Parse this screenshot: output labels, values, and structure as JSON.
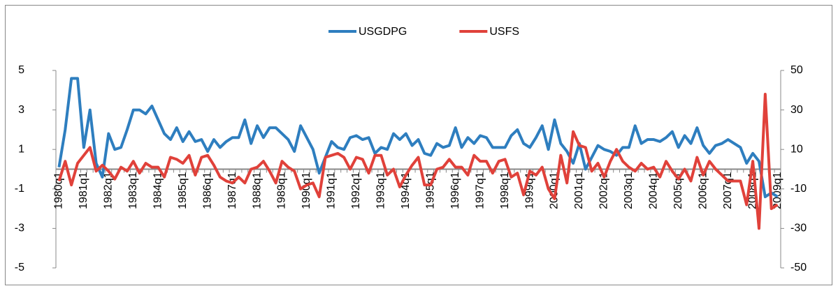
{
  "chart_data": {
    "type": "line",
    "categories": [
      "1980q1",
      null,
      null,
      null,
      "1981q1",
      null,
      null,
      null,
      "1982q1",
      null,
      null,
      null,
      "1983q1",
      null,
      null,
      null,
      "1984q1",
      null,
      null,
      null,
      "1985q1",
      null,
      null,
      null,
      "1986q1",
      null,
      null,
      null,
      "1987q1",
      null,
      null,
      null,
      "1988q1",
      null,
      null,
      null,
      "1989q1",
      null,
      null,
      null,
      "1990q1",
      null,
      null,
      null,
      "1991q1",
      null,
      null,
      null,
      "1992q1",
      null,
      null,
      null,
      "1993q1",
      null,
      null,
      null,
      "1994q1",
      null,
      null,
      null,
      "1995q1",
      null,
      null,
      null,
      "1996q1",
      null,
      null,
      null,
      "1997q1",
      null,
      null,
      null,
      "1998q1",
      null,
      null,
      null,
      "1999q1",
      null,
      null,
      null,
      "2000q1",
      null,
      null,
      null,
      "2001q1",
      null,
      null,
      null,
      "2002q1",
      null,
      null,
      null,
      "2003q1",
      null,
      null,
      null,
      "2004q1",
      null,
      null,
      null,
      "2005q1",
      null,
      null,
      null,
      "2006q1",
      null,
      null,
      null,
      "2007q1",
      null,
      null,
      null,
      "2008q1",
      null,
      null,
      null,
      "2009q1"
    ],
    "series": [
      {
        "name": "USGDPG",
        "color": "#2e7ebf",
        "values": [
          0.1,
          2.0,
          4.6,
          4.6,
          1.1,
          3.0,
          0.3,
          -0.4,
          1.8,
          1.0,
          1.1,
          2.0,
          3.0,
          3.0,
          2.8,
          3.2,
          2.5,
          1.8,
          1.5,
          2.1,
          1.4,
          1.9,
          1.4,
          1.5,
          0.9,
          1.5,
          1.1,
          1.4,
          1.6,
          1.6,
          2.5,
          1.3,
          2.2,
          1.6,
          2.1,
          2.1,
          1.8,
          1.5,
          0.9,
          2.2,
          1.6,
          1.0,
          -0.2,
          0.6,
          1.4,
          1.1,
          1.0,
          1.6,
          1.7,
          1.5,
          1.6,
          0.8,
          1.1,
          1.0,
          1.8,
          1.5,
          1.8,
          1.2,
          1.5,
          0.8,
          0.7,
          1.3,
          1.1,
          1.2,
          2.1,
          1.1,
          1.6,
          1.3,
          1.7,
          1.6,
          1.1,
          1.1,
          1.1,
          1.7,
          2.0,
          1.3,
          1.1,
          1.6,
          2.2,
          1.0,
          2.5,
          1.3,
          0.9,
          0.3,
          1.3,
          0.0,
          0.6,
          1.2,
          1.0,
          0.9,
          0.7,
          1.1,
          1.1,
          2.2,
          1.3,
          1.5,
          1.5,
          1.4,
          1.6,
          1.9,
          1.1,
          1.7,
          1.3,
          2.1,
          1.2,
          0.8,
          1.2,
          1.3,
          1.5,
          1.3,
          1.1,
          0.3,
          0.8,
          0.4,
          -1.4,
          -1.2,
          -1.4
        ]
      },
      {
        "name": "USFS",
        "color": "#e0413a",
        "axis": "y2",
        "values": [
          -6,
          4,
          -8,
          3,
          7,
          11,
          -1,
          2,
          -1,
          -5,
          1,
          -1,
          4,
          -2,
          3,
          1,
          1,
          -4,
          6,
          5,
          3,
          7,
          -3,
          6,
          7,
          2,
          -4,
          -6,
          -7,
          -4,
          -7,
          0,
          1,
          4,
          -1,
          -7,
          4,
          1,
          -1,
          -10,
          -8,
          -7,
          -14,
          6,
          7,
          8,
          6,
          0,
          6,
          5,
          -2,
          7,
          7,
          -3,
          0,
          -9,
          -3,
          2,
          6,
          -8,
          -8,
          0,
          1,
          5,
          1,
          1,
          -3,
          7,
          4,
          4,
          -2,
          4,
          5,
          -4,
          -2,
          -13,
          -1,
          -3,
          1,
          -10,
          -15,
          7,
          -7,
          19,
          12,
          11,
          -1,
          3,
          -4,
          4,
          10,
          4,
          1,
          -1,
          3,
          0,
          1,
          -4,
          4,
          -1,
          -5,
          0,
          -6,
          6,
          -3,
          4,
          0,
          -3,
          -6,
          -6,
          -6,
          -18,
          4,
          -30,
          38,
          -20,
          -18
        ]
      }
    ],
    "ylim": [
      -5,
      5
    ],
    "yticks": [
      -5,
      -3,
      -1,
      1,
      3,
      5
    ],
    "y2lim": [
      -50,
      50
    ],
    "y2ticks": [
      -50,
      -30,
      -10,
      10,
      30,
      50
    ],
    "legend": "top"
  }
}
